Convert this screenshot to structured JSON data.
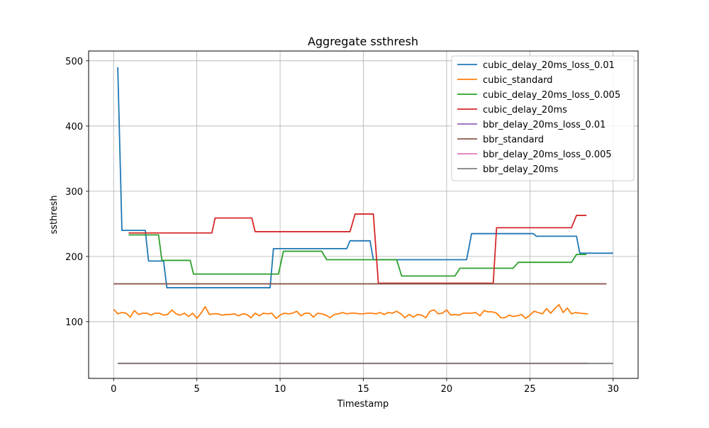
{
  "chart_data": {
    "type": "line",
    "title": "Aggregate ssthresh",
    "xlabel": "Timestamp",
    "ylabel": "ssthresh",
    "xlim": [
      -1.5,
      31.5
    ],
    "ylim": [
      13,
      515
    ],
    "xticks": [
      0,
      5,
      10,
      15,
      20,
      25,
      30
    ],
    "yticks": [
      100,
      200,
      300,
      400,
      500
    ],
    "grid": true,
    "legend_position": "top-right",
    "series": [
      {
        "name": "cubic_delay_20ms_loss_0.01",
        "color": "#1f77b4",
        "points": [
          [
            0.25,
            490
          ],
          [
            0.5,
            240
          ],
          [
            1.0,
            240
          ],
          [
            1.5,
            240
          ],
          [
            1.9,
            240
          ],
          [
            2.1,
            193
          ],
          [
            2.5,
            193
          ],
          [
            3.0,
            193
          ],
          [
            3.2,
            152
          ],
          [
            4.0,
            152
          ],
          [
            5.0,
            152
          ],
          [
            6.0,
            152
          ],
          [
            7.0,
            152
          ],
          [
            8.0,
            152
          ],
          [
            9.0,
            152
          ],
          [
            9.4,
            152
          ],
          [
            9.6,
            212
          ],
          [
            10.0,
            212
          ],
          [
            11.0,
            212
          ],
          [
            12.0,
            212
          ],
          [
            13.0,
            212
          ],
          [
            14.0,
            212
          ],
          [
            14.2,
            224
          ],
          [
            15.0,
            224
          ],
          [
            15.4,
            224
          ],
          [
            15.6,
            195
          ],
          [
            16.0,
            195
          ],
          [
            17.0,
            195
          ],
          [
            18.0,
            195
          ],
          [
            19.0,
            195
          ],
          [
            20.0,
            195
          ],
          [
            21.0,
            195
          ],
          [
            21.2,
            195
          ],
          [
            21.5,
            235
          ],
          [
            22.0,
            235
          ],
          [
            23.0,
            235
          ],
          [
            24.0,
            235
          ],
          [
            25.0,
            235
          ],
          [
            25.2,
            235
          ],
          [
            25.4,
            231
          ],
          [
            26.0,
            231
          ],
          [
            27.0,
            231
          ],
          [
            27.8,
            231
          ],
          [
            28.0,
            205
          ],
          [
            29.0,
            205
          ],
          [
            30.0,
            205
          ]
        ]
      },
      {
        "name": "cubic_standard",
        "color": "#ff7f0e",
        "points": [
          [
            0.0,
            119
          ],
          [
            0.25,
            112
          ],
          [
            0.5,
            114
          ],
          [
            0.75,
            113
          ],
          [
            1.0,
            107
          ],
          [
            1.25,
            117
          ],
          [
            1.5,
            111
          ],
          [
            1.75,
            113
          ],
          [
            2.0,
            113
          ],
          [
            2.25,
            110
          ],
          [
            2.5,
            113
          ],
          [
            2.75,
            113
          ],
          [
            3.0,
            110
          ],
          [
            3.25,
            111
          ],
          [
            3.5,
            118
          ],
          [
            3.75,
            112
          ],
          [
            4.0,
            110
          ],
          [
            4.25,
            113
          ],
          [
            4.5,
            108
          ],
          [
            4.75,
            113
          ],
          [
            5.0,
            105
          ],
          [
            5.25,
            113
          ],
          [
            5.5,
            123
          ],
          [
            5.75,
            111
          ],
          [
            6.0,
            112
          ],
          [
            6.25,
            112
          ],
          [
            6.5,
            110
          ],
          [
            6.75,
            111
          ],
          [
            7.0,
            111
          ],
          [
            7.25,
            112
          ],
          [
            7.5,
            109
          ],
          [
            7.75,
            112
          ],
          [
            8.0,
            111
          ],
          [
            8.25,
            106
          ],
          [
            8.5,
            113
          ],
          [
            8.75,
            109
          ],
          [
            9.0,
            113
          ],
          [
            9.25,
            112
          ],
          [
            9.5,
            113
          ],
          [
            9.75,
            105
          ],
          [
            10.0,
            110
          ],
          [
            10.25,
            113
          ],
          [
            10.5,
            112
          ],
          [
            10.75,
            113
          ],
          [
            11.0,
            116
          ],
          [
            11.25,
            109
          ],
          [
            11.5,
            113
          ],
          [
            11.75,
            113
          ],
          [
            12.0,
            107
          ],
          [
            12.25,
            113
          ],
          [
            12.5,
            112
          ],
          [
            12.75,
            110
          ],
          [
            13.0,
            106
          ],
          [
            13.25,
            111
          ],
          [
            13.5,
            112
          ],
          [
            13.75,
            114
          ],
          [
            14.0,
            112
          ],
          [
            14.25,
            113
          ],
          [
            14.5,
            113
          ],
          [
            14.75,
            112
          ],
          [
            15.0,
            112
          ],
          [
            15.25,
            113
          ],
          [
            15.5,
            113
          ],
          [
            15.75,
            112
          ],
          [
            16.0,
            114
          ],
          [
            16.25,
            111
          ],
          [
            16.5,
            114
          ],
          [
            16.75,
            113
          ],
          [
            17.0,
            116
          ],
          [
            17.25,
            112
          ],
          [
            17.5,
            106
          ],
          [
            17.75,
            111
          ],
          [
            18.0,
            107
          ],
          [
            18.25,
            111
          ],
          [
            18.5,
            110
          ],
          [
            18.75,
            106
          ],
          [
            19.0,
            116
          ],
          [
            19.25,
            118
          ],
          [
            19.5,
            112
          ],
          [
            19.75,
            113
          ],
          [
            20.0,
            118
          ],
          [
            20.25,
            110
          ],
          [
            20.5,
            111
          ],
          [
            20.75,
            110
          ],
          [
            21.0,
            113
          ],
          [
            21.25,
            113
          ],
          [
            21.5,
            113
          ],
          [
            21.75,
            114
          ],
          [
            22.0,
            109
          ],
          [
            22.25,
            117
          ],
          [
            22.5,
            115
          ],
          [
            22.75,
            115
          ],
          [
            23.0,
            113
          ],
          [
            23.25,
            106
          ],
          [
            23.5,
            106
          ],
          [
            23.75,
            110
          ],
          [
            24.0,
            108
          ],
          [
            24.25,
            109
          ],
          [
            24.5,
            111
          ],
          [
            24.75,
            105
          ],
          [
            25.0,
            110
          ],
          [
            25.25,
            116
          ],
          [
            25.5,
            114
          ],
          [
            25.75,
            112
          ],
          [
            26.0,
            120
          ],
          [
            26.25,
            113
          ],
          [
            26.5,
            120
          ],
          [
            26.75,
            126
          ],
          [
            27.0,
            114
          ],
          [
            27.25,
            121
          ],
          [
            27.5,
            112
          ],
          [
            27.75,
            114
          ],
          [
            28.0,
            113
          ],
          [
            28.5,
            112
          ]
        ]
      },
      {
        "name": "cubic_delay_20ms_loss_0.005",
        "color": "#2ca02c",
        "points": [
          [
            0.9,
            233
          ],
          [
            1.5,
            233
          ],
          [
            2.0,
            233
          ],
          [
            2.7,
            233
          ],
          [
            2.9,
            194
          ],
          [
            3.5,
            194
          ],
          [
            4.0,
            194
          ],
          [
            4.6,
            194
          ],
          [
            4.8,
            173
          ],
          [
            5.5,
            173
          ],
          [
            6.5,
            173
          ],
          [
            7.5,
            173
          ],
          [
            8.5,
            173
          ],
          [
            9.5,
            173
          ],
          [
            9.9,
            173
          ],
          [
            10.2,
            208
          ],
          [
            11.0,
            208
          ],
          [
            12.0,
            208
          ],
          [
            12.5,
            208
          ],
          [
            12.8,
            195
          ],
          [
            13.5,
            195
          ],
          [
            14.5,
            195
          ],
          [
            15.5,
            195
          ],
          [
            16.5,
            195
          ],
          [
            17.0,
            195
          ],
          [
            17.3,
            170
          ],
          [
            18.0,
            170
          ],
          [
            19.0,
            170
          ],
          [
            20.0,
            170
          ],
          [
            20.5,
            170
          ],
          [
            20.8,
            182
          ],
          [
            21.5,
            182
          ],
          [
            22.5,
            182
          ],
          [
            23.5,
            182
          ],
          [
            24.0,
            182
          ],
          [
            24.3,
            191
          ],
          [
            25.0,
            191
          ],
          [
            26.0,
            191
          ],
          [
            27.0,
            191
          ],
          [
            27.5,
            191
          ],
          [
            27.8,
            203
          ],
          [
            28.4,
            203
          ]
        ]
      },
      {
        "name": "cubic_delay_20ms",
        "color": "#d62728",
        "points": [
          [
            0.9,
            236
          ],
          [
            2.0,
            236
          ],
          [
            3.0,
            236
          ],
          [
            4.0,
            236
          ],
          [
            5.0,
            236
          ],
          [
            5.9,
            236
          ],
          [
            6.1,
            259
          ],
          [
            7.0,
            259
          ],
          [
            8.0,
            259
          ],
          [
            8.3,
            259
          ],
          [
            8.5,
            238
          ],
          [
            9.5,
            238
          ],
          [
            10.5,
            238
          ],
          [
            11.5,
            238
          ],
          [
            12.5,
            238
          ],
          [
            13.5,
            238
          ],
          [
            14.2,
            238
          ],
          [
            14.5,
            265
          ],
          [
            15.0,
            265
          ],
          [
            15.6,
            265
          ],
          [
            15.9,
            159
          ],
          [
            16.5,
            159
          ],
          [
            17.5,
            159
          ],
          [
            18.5,
            159
          ],
          [
            19.5,
            159
          ],
          [
            20.5,
            159
          ],
          [
            21.5,
            159
          ],
          [
            22.5,
            159
          ],
          [
            22.8,
            159
          ],
          [
            23.0,
            244
          ],
          [
            24.0,
            244
          ],
          [
            25.0,
            244
          ],
          [
            26.0,
            244
          ],
          [
            27.0,
            244
          ],
          [
            27.5,
            244
          ],
          [
            27.8,
            263
          ],
          [
            28.4,
            263
          ]
        ]
      },
      {
        "name": "bbr_delay_20ms_loss_0.01",
        "color": "#9467bd",
        "points": [
          [
            0.25,
            36
          ],
          [
            28.5,
            36
          ]
        ]
      },
      {
        "name": "bbr_standard",
        "color": "#8c564b",
        "points": [
          [
            0.0,
            158
          ],
          [
            29.6,
            158
          ]
        ]
      },
      {
        "name": "bbr_delay_20ms_loss_0.005",
        "color": "#e377c2",
        "points": [
          [
            0.25,
            36
          ],
          [
            28.5,
            36
          ]
        ]
      },
      {
        "name": "bbr_delay_20ms",
        "color": "#7f7f7f",
        "points": [
          [
            0.25,
            36
          ],
          [
            30.0,
            36
          ]
        ]
      }
    ]
  }
}
